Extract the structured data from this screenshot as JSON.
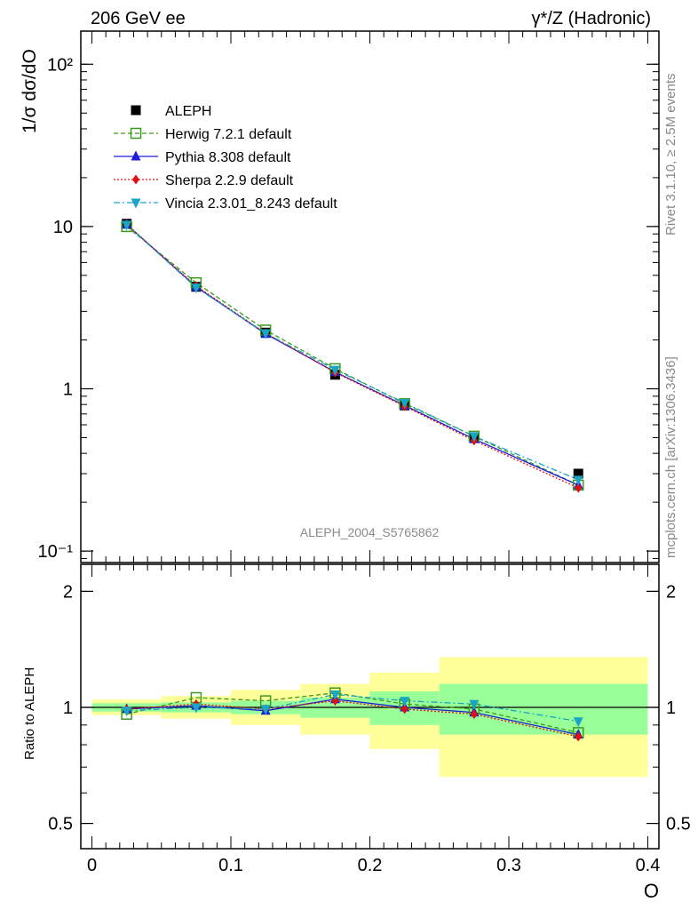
{
  "header": {
    "left": "206 GeV ee",
    "right": "γ*/Z (Hadronic)"
  },
  "side": {
    "rivet": "Rivet 3.1.10, ≥ 2.5M events",
    "mcplots": "mcplots.cern.ch [arXiv:1306.3436]"
  },
  "analysis_label": "ALEPH_2004_S5765862",
  "legend": [
    {
      "label": "ALEPH",
      "color": "#000000",
      "marker": "square-filled",
      "line": "none"
    },
    {
      "label": "Herwig 7.2.1 default",
      "color": "#3c9a1e",
      "marker": "square-open",
      "line": "dashed"
    },
    {
      "label": "Pythia 8.308 default",
      "color": "#1d1dd6",
      "marker": "triangle-up",
      "line": "solid"
    },
    {
      "label": "Sherpa 2.2.9 default",
      "color": "#e01010",
      "marker": "diamond",
      "line": "dotted"
    },
    {
      "label": "Vincia 2.3.01_8.243 default",
      "color": "#1aa5c4",
      "marker": "triangle-down",
      "line": "dashdot"
    }
  ],
  "chart_data": [
    {
      "type": "line",
      "ylabel": "1/σ  dσ/dO",
      "yscale": "log",
      "ylim": [
        0.085,
        160
      ],
      "xlim": [
        -0.008,
        0.408
      ],
      "y_ticks": [
        {
          "v": 0.1,
          "label": "10⁻¹"
        },
        {
          "v": 1,
          "label": "1"
        },
        {
          "v": 10,
          "label": "10"
        },
        {
          "v": 100,
          "label": "10²"
        }
      ],
      "legend_position": "top-left",
      "x": [
        0.025,
        0.075,
        0.125,
        0.175,
        0.225,
        0.275,
        0.35
      ],
      "data": {
        "name": "ALEPH",
        "y": [
          10.4,
          4.25,
          2.22,
          1.22,
          0.79,
          0.5,
          0.3
        ]
      },
      "series": [
        {
          "name": "Herwig 7.2.1 default",
          "y": [
            10.0,
            4.5,
            2.3,
            1.33,
            0.81,
            0.51,
            0.255
          ]
        },
        {
          "name": "Pythia 8.308 default",
          "y": [
            10.3,
            4.25,
            2.18,
            1.27,
            0.79,
            0.49,
            0.255
          ]
        },
        {
          "name": "Sherpa 2.2.9 default",
          "y": [
            10.3,
            4.3,
            2.2,
            1.26,
            0.78,
            0.48,
            0.245
          ]
        },
        {
          "name": "Vincia 2.3.01_8.243 default",
          "y": [
            10.25,
            4.2,
            2.2,
            1.31,
            0.82,
            0.51,
            0.275
          ]
        }
      ]
    },
    {
      "type": "line",
      "ylabel": "Ratio to ALEPH",
      "xlabel": "O",
      "yscale": "log",
      "ylim": [
        0.43,
        2.35
      ],
      "xlim": [
        -0.008,
        0.408
      ],
      "y_ticks": [
        {
          "v": 0.5,
          "label": "0.5"
        },
        {
          "v": 1,
          "label": "1"
        },
        {
          "v": 2,
          "label": "2"
        }
      ],
      "x_ticks": [
        {
          "v": 0,
          "label": "0"
        },
        {
          "v": 0.1,
          "label": "0.1"
        },
        {
          "v": 0.2,
          "label": "0.2"
        },
        {
          "v": 0.3,
          "label": "0.3"
        },
        {
          "v": 0.4,
          "label": "0.4"
        }
      ],
      "x": [
        0.025,
        0.075,
        0.125,
        0.175,
        0.225,
        0.275,
        0.35
      ],
      "bands": [
        {
          "x0": 0.0,
          "x1": 0.05,
          "stat_lo": 0.975,
          "stat_hi": 1.025,
          "tot_lo": 0.955,
          "tot_hi": 1.048
        },
        {
          "x0": 0.05,
          "x1": 0.1,
          "stat_lo": 0.97,
          "stat_hi": 1.03,
          "tot_lo": 0.935,
          "tot_hi": 1.07
        },
        {
          "x0": 0.1,
          "x1": 0.15,
          "stat_lo": 0.96,
          "stat_hi": 1.04,
          "tot_lo": 0.9,
          "tot_hi": 1.11
        },
        {
          "x0": 0.15,
          "x1": 0.2,
          "stat_lo": 0.94,
          "stat_hi": 1.06,
          "tot_lo": 0.85,
          "tot_hi": 1.15
        },
        {
          "x0": 0.2,
          "x1": 0.25,
          "stat_lo": 0.9,
          "stat_hi": 1.1,
          "tot_lo": 0.78,
          "tot_hi": 1.23
        },
        {
          "x0": 0.25,
          "x1": 0.4,
          "stat_lo": 0.85,
          "stat_hi": 1.15,
          "tot_lo": 0.66,
          "tot_hi": 1.35
        }
      ],
      "series": [
        {
          "name": "Herwig 7.2.1 default",
          "y": [
            0.96,
            1.06,
            1.04,
            1.09,
            1.02,
            0.99,
            0.86
          ]
        },
        {
          "name": "Pythia 8.308 default",
          "y": [
            0.99,
            1.01,
            0.98,
            1.05,
            1.0,
            0.97,
            0.85
          ]
        },
        {
          "name": "Sherpa 2.2.9 default",
          "y": [
            0.99,
            1.02,
            0.99,
            1.04,
            0.99,
            0.96,
            0.84
          ]
        },
        {
          "name": "Vincia 2.3.01_8.243 default",
          "y": [
            0.98,
            1.0,
            0.99,
            1.08,
            1.04,
            1.02,
            0.92
          ]
        }
      ]
    }
  ]
}
